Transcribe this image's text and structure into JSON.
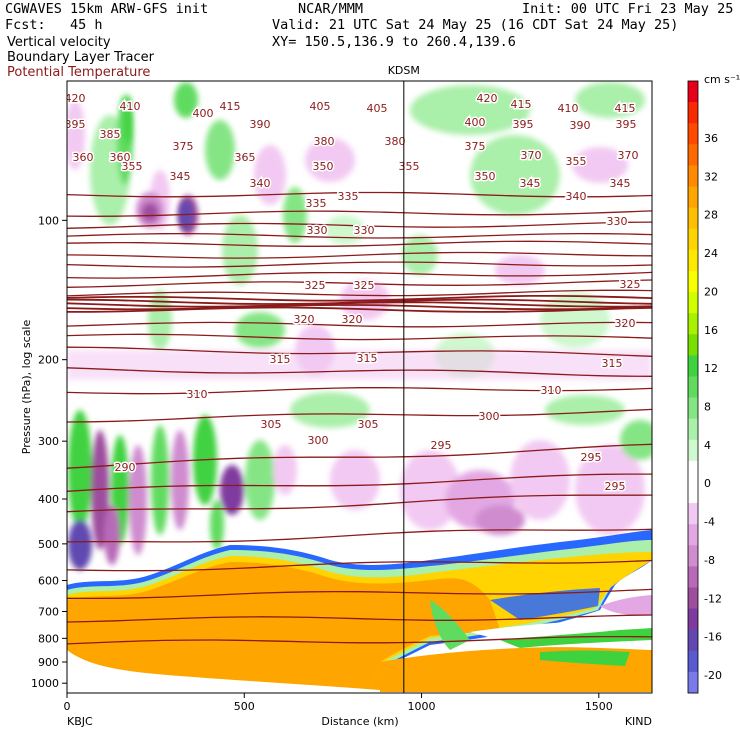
{
  "header": {
    "left1": "CGWAVES 15km ARW-GFS init",
    "left2": "Fcst:   45 h",
    "left3": "Vertical velocity",
    "left4": "Boundary Layer Tracer",
    "left5": "Potential Temperature",
    "center1": "NCAR/MMM",
    "right1": "Init: 00 UTC Fri 23 May 25",
    "right2": "Valid: 21 UTC Sat 24 May 25 (16 CDT Sat 24 May 25)",
    "right3": "XY= 150.5,136.9 to 260.4,139.6",
    "theta_color": "#8b1a1a"
  },
  "chart_data": {
    "type": "heatmap",
    "title": "",
    "station_marker": {
      "label": "KDSM",
      "x_km": 950
    },
    "xlabel": "Distance (km)",
    "ylabel": "Pressure (hPa), log scale",
    "x_ticks": [
      0,
      500,
      1000,
      1500
    ],
    "y_ticks": [
      100,
      200,
      300,
      400,
      500,
      600,
      700,
      800,
      900,
      1000
    ],
    "x_end_labels": [
      "KBJC",
      "KIND"
    ],
    "xlim": [
      0,
      1650
    ],
    "ylim_hpa": [
      1050,
      50
    ],
    "colorbar": {
      "unit": "cm s⁻¹",
      "tick_labels": [
        36,
        32,
        28,
        24,
        20,
        16,
        12,
        8,
        4,
        0,
        -4,
        -8,
        -12,
        -16,
        -20
      ],
      "colors": [
        "#e8001a",
        "#fa2a00",
        "#ff4a00",
        "#ff6a00",
        "#ff8a00",
        "#ffa500",
        "#ffbf00",
        "#ffd400",
        "#ffe900",
        "#f7ff00",
        "#d2ff00",
        "#a8f100",
        "#78e000",
        "#3fd23f",
        "#60db60",
        "#85e585",
        "#aaefaa",
        "#cff8cf",
        "#ffffff",
        "#ffffff",
        "#f2c9f2",
        "#e3a8e3",
        "#cf8ccf",
        "#b86ab8",
        "#9d4e9d",
        "#7f3a9f",
        "#6048b0",
        "#5a5ad0",
        "#7a7ae8"
      ]
    },
    "theta_contour_labels": [
      "420",
      "410",
      "415",
      "405",
      "405",
      "420",
      "415",
      "410",
      "415",
      "395",
      "400",
      "390",
      "400",
      "395",
      "390",
      "395",
      "385",
      "375",
      "380",
      "380",
      "375",
      "370",
      "360",
      "370",
      "360",
      "355",
      "365",
      "355",
      "345",
      "350",
      "355",
      "350",
      "345",
      "345",
      "340",
      "340",
      "335",
      "335",
      "330",
      "330",
      "330",
      "325",
      "325",
      "325",
      "320",
      "320",
      "320",
      "315",
      "315",
      "315",
      "310",
      "310",
      "305",
      "305",
      "300",
      "300",
      "295",
      "295",
      "290",
      "295"
    ]
  }
}
